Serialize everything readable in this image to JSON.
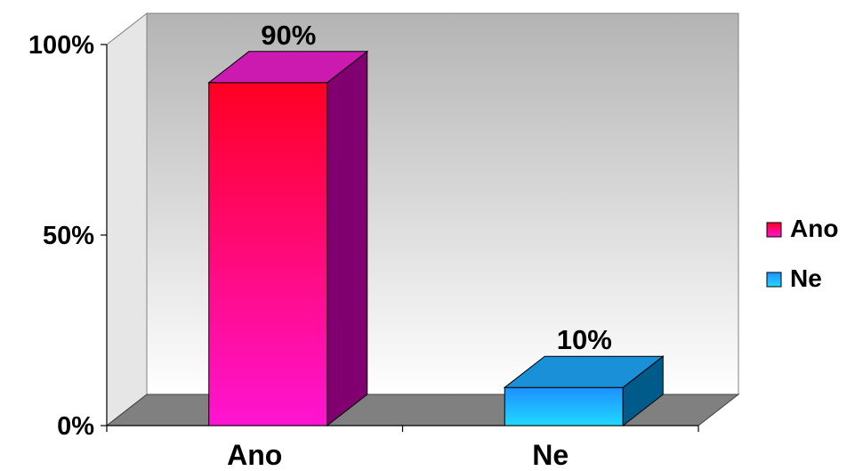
{
  "chart_data": {
    "type": "bar",
    "categories": [
      "Ano",
      "Ne"
    ],
    "series": [
      {
        "name": "Ano",
        "values": [
          90,
          null
        ],
        "color": "#ff1493"
      },
      {
        "name": "Ne",
        "values": [
          null,
          10
        ],
        "color": "#1e90ff"
      }
    ],
    "data_labels": [
      "90%",
      "10%"
    ],
    "y_ticks": [
      "0%",
      "50%",
      "100%"
    ],
    "ylim": [
      0,
      100
    ],
    "grid": false,
    "three_d": true,
    "legend_position": "right",
    "colors": {
      "ano_top": "#ff0022",
      "ano_bottom": "#ff14d2",
      "ano_side": "#800070",
      "ano_cap": "#cc1ab0",
      "ne_top": "#1e90ff",
      "ne_bottom": "#20d8ff",
      "ne_side": "#005a8a",
      "ne_cap": "#1a90d8",
      "wall_top": "#b4b4b4",
      "wall_bottom": "#ffffff",
      "floor": "#808080",
      "side_wall": "#e6e6e6"
    }
  }
}
